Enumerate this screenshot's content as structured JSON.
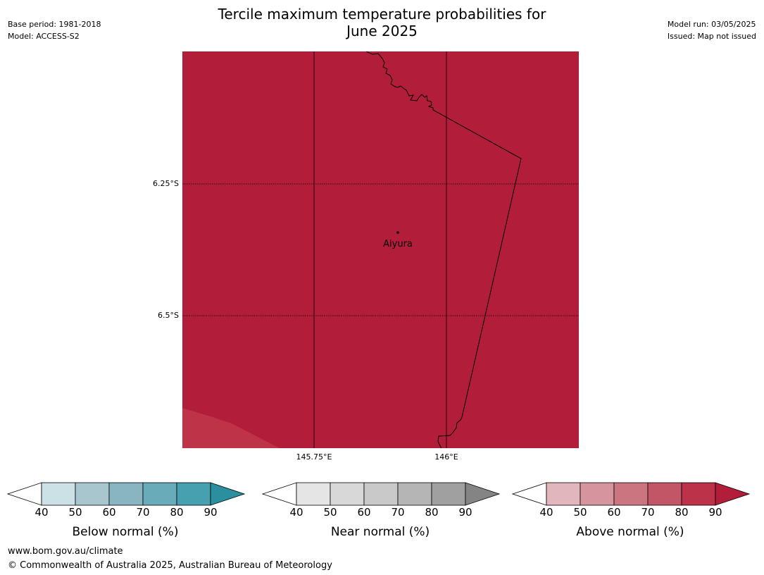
{
  "title": "Tercile maximum temperature probabilities for",
  "subtitle": "June 2025",
  "meta_left": {
    "base_period": "Base period: 1981-2018",
    "model": "Model: ACCESS-S2"
  },
  "meta_right": {
    "model_run": "Model run: 03/05/2025",
    "issued": "Issued: Map not issued"
  },
  "map": {
    "fill_color": "#b21d3a",
    "lower_band_color": "#bf3349",
    "place_label": "Aiyura",
    "lat_labels": [
      "6.25°S",
      "6.5°S"
    ],
    "lon_labels": [
      "145.75°E",
      "146°E"
    ]
  },
  "colorbars": [
    {
      "title": "Below normal (%)",
      "ticks": [
        "40",
        "50",
        "60",
        "70",
        "80",
        "90"
      ],
      "colors": [
        "#ffffff",
        "#cbe1e6",
        "#a8c6cd",
        "#89b4c2",
        "#69abb9",
        "#46a0b0",
        "#2b8fa0"
      ]
    },
    {
      "title": "Near normal (%)",
      "ticks": [
        "40",
        "50",
        "60",
        "70",
        "80",
        "90"
      ],
      "colors": [
        "#ffffff",
        "#e5e5e5",
        "#d8d8d8",
        "#c9c9c9",
        "#b5b5b5",
        "#a0a0a0",
        "#848484"
      ]
    },
    {
      "title": "Above normal (%)",
      "ticks": [
        "40",
        "50",
        "60",
        "70",
        "80",
        "90"
      ],
      "colors": [
        "#ffffff",
        "#e1b6bd",
        "#d5949e",
        "#cb7580",
        "#c25667",
        "#bb3249",
        "#b21d3a"
      ]
    }
  ],
  "footer": {
    "url": "www.bom.gov.au/climate",
    "copyright": "© Commonwealth of Australia 2025, Australian Bureau of Meteorology"
  }
}
